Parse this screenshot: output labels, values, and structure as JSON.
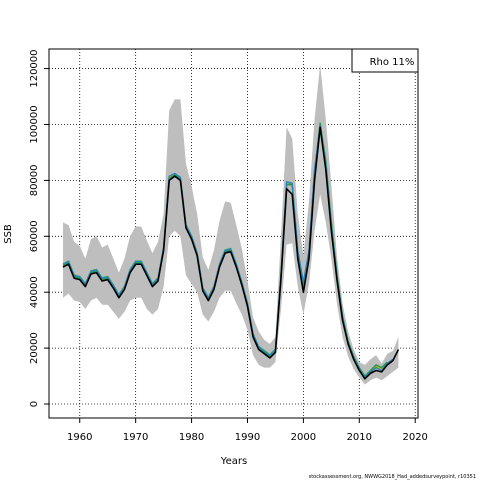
{
  "chart_data": {
    "type": "line",
    "xlabel": "Years",
    "ylabel": "SSB",
    "xlim": [
      1954.5,
      2020.5
    ],
    "ylim": [
      -5000,
      127000
    ],
    "x_ticks": [
      1960,
      1970,
      1980,
      1990,
      2000,
      2010,
      2020
    ],
    "y_ticks": [
      0,
      20000,
      40000,
      60000,
      80000,
      100000,
      120000
    ],
    "grid": true,
    "legend": {
      "placement": "top-right",
      "text": "Rho 11%"
    },
    "footnote": "stockassessment.org, NWWG2018_Had_addedsurveypoint, r10351",
    "colors": {
      "band": "#bebebe",
      "base": "#000000",
      "peels": [
        "#2b83ba",
        "#1a9850",
        "#d7b100",
        "#66bd63"
      ]
    },
    "band": {
      "x": [
        1957,
        1958,
        1959,
        1960,
        1961,
        1962,
        1963,
        1964,
        1965,
        1966,
        1967,
        1968,
        1969,
        1970,
        1971,
        1972,
        1973,
        1974,
        1975,
        1976,
        1977,
        1978,
        1979,
        1980,
        1981,
        1982,
        1983,
        1984,
        1985,
        1986,
        1987,
        1988,
        1989,
        1990,
        1991,
        1992,
        1993,
        1994,
        1995,
        1996,
        1997,
        1998,
        1999,
        2000,
        2001,
        2002,
        2003,
        2004,
        2005,
        2006,
        2007,
        2008,
        2009,
        2010,
        2011,
        2012,
        2013,
        2014,
        2015,
        2016,
        2017
      ],
      "lower": [
        38000,
        39500,
        37000,
        36500,
        34000,
        37000,
        38000,
        35500,
        35500,
        33000,
        30500,
        33000,
        37000,
        38000,
        38000,
        34000,
        32000,
        34000,
        42000,
        60000,
        62000,
        60000,
        46000,
        43000,
        40000,
        32000,
        29500,
        33000,
        38000,
        40500,
        40500,
        36000,
        32000,
        26500,
        17500,
        14000,
        13000,
        13000,
        15000,
        34000,
        57000,
        57500,
        42000,
        32000,
        43000,
        62000,
        75000,
        65000,
        52000,
        36000,
        24000,
        17000,
        12500,
        9500,
        7000,
        8500,
        9500,
        8500,
        10000,
        11500,
        13000
      ],
      "upper": [
        65000,
        64000,
        58000,
        56500,
        52000,
        59000,
        60000,
        56000,
        57000,
        52000,
        47000,
        52000,
        60000,
        63500,
        63500,
        58500,
        54000,
        58000,
        68000,
        105000,
        109000,
        109000,
        86000,
        78000,
        68000,
        52500,
        48000,
        55000,
        65500,
        72500,
        72000,
        64000,
        55500,
        44000,
        31000,
        26000,
        23000,
        21500,
        24000,
        60500,
        99000,
        95000,
        68000,
        53000,
        72500,
        102000,
        121500,
        102000,
        78500,
        53000,
        36000,
        26000,
        19500,
        15000,
        14000,
        16000,
        17500,
        14500,
        18000,
        19000,
        24000
      ]
    },
    "series": [
      {
        "name": "",
        "x": [
          1957,
          1958,
          1959,
          1960,
          1961,
          1962,
          1963,
          1964,
          1965,
          1966,
          1967,
          1968,
          1969,
          1970,
          1971,
          1972,
          1973,
          1974,
          1975,
          1976,
          1977,
          1978,
          1979,
          1980,
          1981,
          1982,
          1983,
          1984,
          1985,
          1986,
          1987,
          1988,
          1989,
          1990,
          1991,
          1992,
          1993,
          1994,
          1995,
          1996,
          1997,
          1998,
          1999,
          2000,
          2001,
          2002,
          2003,
          2004,
          2005,
          2006,
          2007,
          2008,
          2009,
          2010,
          2011,
          2012,
          2013,
          2014,
          2015,
          2016,
          2017
        ],
        "values": [
          49000,
          50000,
          45000,
          44500,
          42000,
          46500,
          47000,
          44000,
          44500,
          41500,
          38000,
          41000,
          47000,
          50000,
          50000,
          46000,
          42000,
          44000,
          55000,
          80000,
          81500,
          80000,
          63000,
          59000,
          53000,
          40500,
          37000,
          41000,
          49000,
          54000,
          54500,
          49000,
          42500,
          35000,
          24000,
          19500,
          18000,
          16500,
          18500,
          45000,
          77000,
          75000,
          52000,
          40000,
          52000,
          80000,
          99000,
          84000,
          62000,
          44500,
          30000,
          21500,
          16000,
          12000,
          9000,
          11000,
          12000,
          11500,
          14000,
          15500,
          19500
        ]
      },
      {
        "name": "",
        "x": [
          1957,
          1958,
          1959,
          1960,
          1961,
          1962,
          1963,
          1964,
          1965,
          1966,
          1967,
          1968,
          1969,
          1970,
          1971,
          1972,
          1973,
          1974,
          1975,
          1976,
          1977,
          1978,
          1979,
          1980,
          1981,
          1982,
          1983,
          1984,
          1985,
          1986,
          1987,
          1988,
          1989,
          1990,
          1991,
          1992,
          1993,
          1994,
          1995,
          1996,
          1997,
          1998,
          1999,
          2000,
          2001,
          2002,
          2003,
          2004,
          2005,
          2006,
          2007,
          2008,
          2009,
          2010,
          2011,
          2012,
          2013,
          2014,
          2015,
          2016
        ],
        "values": [
          50000,
          51000,
          46000,
          45500,
          43000,
          47500,
          48000,
          45000,
          45500,
          42500,
          39000,
          42000,
          48000,
          51000,
          51000,
          47000,
          43000,
          45000,
          56000,
          81500,
          82500,
          81000,
          64000,
          60000,
          54000,
          41500,
          38000,
          42000,
          50000,
          55000,
          55500,
          50000,
          43500,
          36000,
          25000,
          20500,
          19000,
          17500,
          19500,
          46500,
          79500,
          79000,
          55000,
          43500,
          55000,
          84000,
          99500,
          86000,
          64000,
          45500,
          31000,
          22000,
          16500,
          12500,
          9500,
          11500,
          13000,
          12000,
          14500,
          16000
        ]
      },
      {
        "name": "",
        "x": [
          1957,
          1958,
          1959,
          1960,
          1961,
          1962,
          1963,
          1964,
          1965,
          1966,
          1967,
          1968,
          1969,
          1970,
          1971,
          1972,
          1973,
          1974,
          1975,
          1976,
          1977,
          1978,
          1979,
          1980,
          1981,
          1982,
          1983,
          1984,
          1985,
          1986,
          1987,
          1988,
          1989,
          1990,
          1991,
          1992,
          1993,
          1994,
          1995,
          1996,
          1997,
          1998,
          1999,
          2000,
          2001,
          2002,
          2003,
          2004,
          2005,
          2006,
          2007,
          2008,
          2009,
          2010,
          2011,
          2012,
          2013,
          2014,
          2015
        ],
        "values": [
          49500,
          50500,
          45500,
          45000,
          42500,
          47000,
          47500,
          44500,
          45000,
          42000,
          38500,
          41500,
          47500,
          50500,
          50500,
          46500,
          42500,
          44500,
          55500,
          80500,
          82000,
          80500,
          63500,
          59500,
          53500,
          41000,
          37500,
          41500,
          49500,
          54500,
          55000,
          49500,
          43000,
          35500,
          24500,
          20000,
          18500,
          17000,
          19000,
          46000,
          78500,
          78500,
          54000,
          42500,
          54000,
          83000,
          100500,
          87000,
          65000,
          46500,
          31500,
          22500,
          17000,
          13000,
          10000,
          12000,
          14000,
          13000,
          15000
        ]
      },
      {
        "name": "",
        "x": [
          1957,
          1958,
          1959,
          1960,
          1961,
          1962,
          1963,
          1964,
          1965,
          1966,
          1967,
          1968,
          1969,
          1970,
          1971,
          1972,
          1973,
          1974,
          1975,
          1976,
          1977,
          1978,
          1979,
          1980,
          1981,
          1982,
          1983,
          1984,
          1985,
          1986,
          1987,
          1988,
          1989,
          1990,
          1991,
          1992,
          1993,
          1994,
          1995,
          1996,
          1997,
          1998,
          1999,
          2000,
          2001,
          2002,
          2003,
          2004,
          2005,
          2006,
          2007,
          2008,
          2009,
          2010,
          2011,
          2012,
          2013,
          2014
        ],
        "values": [
          49800,
          50800,
          45800,
          45300,
          42800,
          47300,
          47800,
          44800,
          45300,
          42300,
          38800,
          41800,
          47800,
          50800,
          50800,
          46800,
          42800,
          44800,
          55800,
          81000,
          82200,
          80800,
          63800,
          59800,
          53800,
          41300,
          37800,
          41800,
          49800,
          54800,
          55200,
          49800,
          43200,
          35800,
          24800,
          20200,
          18800,
          17200,
          19200,
          46200,
          78800,
          78000,
          53500,
          42000,
          53500,
          82500,
          99800,
          86500,
          64500,
          46000,
          31200,
          22200,
          16800,
          12800,
          9800,
          11800,
          13500,
          12500
        ]
      },
      {
        "name": "",
        "x": [
          1957,
          1958,
          1959,
          1960,
          1961,
          1962,
          1963,
          1964,
          1965,
          1966,
          1967,
          1968,
          1969,
          1970,
          1971,
          1972,
          1973,
          1974,
          1975,
          1976,
          1977,
          1978,
          1979,
          1980,
          1981,
          1982,
          1983,
          1984,
          1985,
          1986,
          1987,
          1988,
          1989,
          1990,
          1991,
          1992,
          1993,
          1994,
          1995,
          1996,
          1997,
          1998,
          1999,
          2000,
          2001,
          2002,
          2003,
          2004,
          2005,
          2006,
          2007,
          2008,
          2009,
          2010,
          2011,
          2012,
          2013
        ],
        "values": [
          50200,
          51200,
          46200,
          45700,
          43200,
          47700,
          48200,
          45200,
          45700,
          42700,
          39200,
          42200,
          48200,
          51200,
          51200,
          47200,
          43200,
          45200,
          56200,
          81200,
          82300,
          81200,
          64200,
          60200,
          54200,
          41700,
          38200,
          42200,
          50200,
          55200,
          55700,
          50200,
          43700,
          36200,
          25200,
          20700,
          19200,
          17700,
          19700,
          46700,
          79000,
          78800,
          54500,
          43000,
          54500,
          83500,
          100000,
          86800,
          64800,
          46200,
          31300,
          22300,
          16800,
          12800,
          9800,
          11500,
          13200
        ]
      }
    ]
  }
}
